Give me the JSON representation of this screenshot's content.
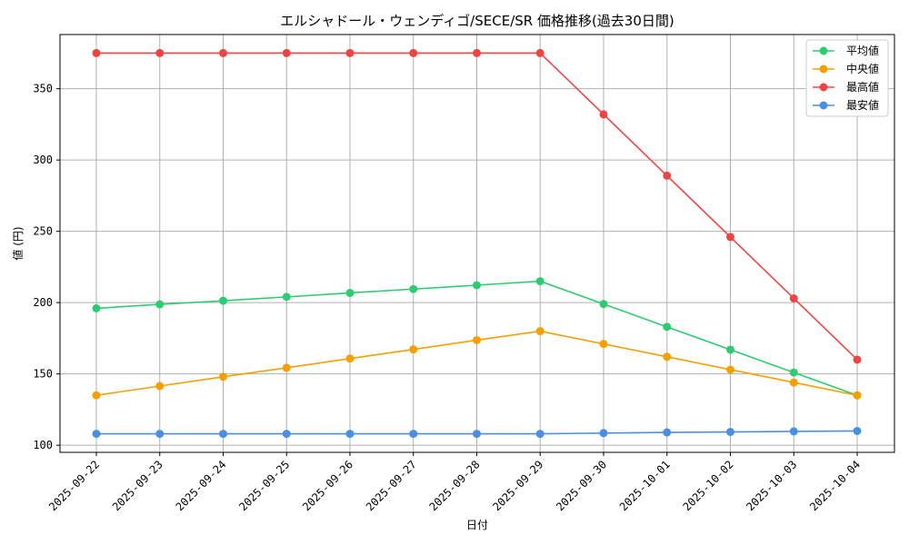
{
  "chart_data": {
    "type": "line",
    "title": "エルシャドール・ウェンディゴ/SECE/SR 価格推移(過去30日間)",
    "xlabel": "日付",
    "ylabel": "値 (円)",
    "ylim": [
      95,
      388
    ],
    "yticks": [
      100,
      150,
      200,
      250,
      300,
      350
    ],
    "grid": true,
    "legend_position": "top-right",
    "categories": [
      "2025-09-22",
      "2025-09-23",
      "2025-09-24",
      "2025-09-25",
      "2025-09-26",
      "2025-09-27",
      "2025-09-28",
      "2025-09-29",
      "2025-09-30",
      "2025-10-01",
      "2025-10-02",
      "2025-10-03",
      "2025-10-04"
    ],
    "series": [
      {
        "name": "平均値",
        "color": "#2ecc71",
        "values": [
          196,
          198.8,
          201.3,
          204,
          206.8,
          209.5,
          212.2,
          215,
          199,
          183,
          167,
          151,
          135
        ]
      },
      {
        "name": "中央値",
        "color": "#f5a000",
        "values": [
          135,
          141.5,
          148,
          154.3,
          160.8,
          167.2,
          173.7,
          180,
          171,
          162,
          153,
          144,
          135
        ]
      },
      {
        "name": "最高値",
        "color": "#ef4444",
        "values": [
          375,
          375,
          375,
          375,
          375,
          375,
          375,
          375,
          332,
          289,
          246,
          203,
          160
        ]
      },
      {
        "name": "最安値",
        "color": "#4a90e2",
        "values": [
          108,
          108,
          108,
          108,
          108,
          108,
          108,
          108,
          108.5,
          109,
          109.3,
          109.7,
          110
        ]
      }
    ]
  }
}
